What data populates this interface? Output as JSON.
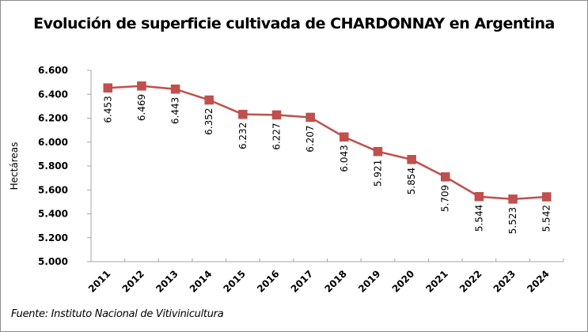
{
  "chart_data": {
    "type": "line",
    "title": "Evolución de superficie cultivada de CHARDONNAY en Argentina",
    "xlabel": "",
    "ylabel": "Hectáreas",
    "ylim": [
      5000,
      6600
    ],
    "y_ticks": [
      5000,
      5200,
      5400,
      5600,
      5800,
      6000,
      6200,
      6400,
      6600
    ],
    "y_tick_labels": [
      "5.000",
      "5.200",
      "5.400",
      "5.600",
      "5.800",
      "6.000",
      "6.200",
      "6.400",
      "6.600"
    ],
    "categories": [
      "2011",
      "2012",
      "2013",
      "2014",
      "2015",
      "2016",
      "2017",
      "2018",
      "2019",
      "2020",
      "2021",
      "2022",
      "2023",
      "2024"
    ],
    "series": [
      {
        "name": "Chardonnay",
        "color": "#c0504d",
        "values": [
          6453,
          6469,
          6443,
          6352,
          6232,
          6227,
          6207,
          6043,
          5921,
          5854,
          5709,
          5544,
          5523,
          5542
        ],
        "data_labels": [
          "6.453",
          "6.469",
          "6.443",
          "6.352",
          "6.232",
          "6.227",
          "6.207",
          "6.043",
          "5.921",
          "5.854",
          "5.709",
          "5.544",
          "5.523",
          "5.542"
        ]
      }
    ],
    "grid": false,
    "legend": "none",
    "source": "Fuente: Instituto Nacional de Vitivinicultura"
  }
}
